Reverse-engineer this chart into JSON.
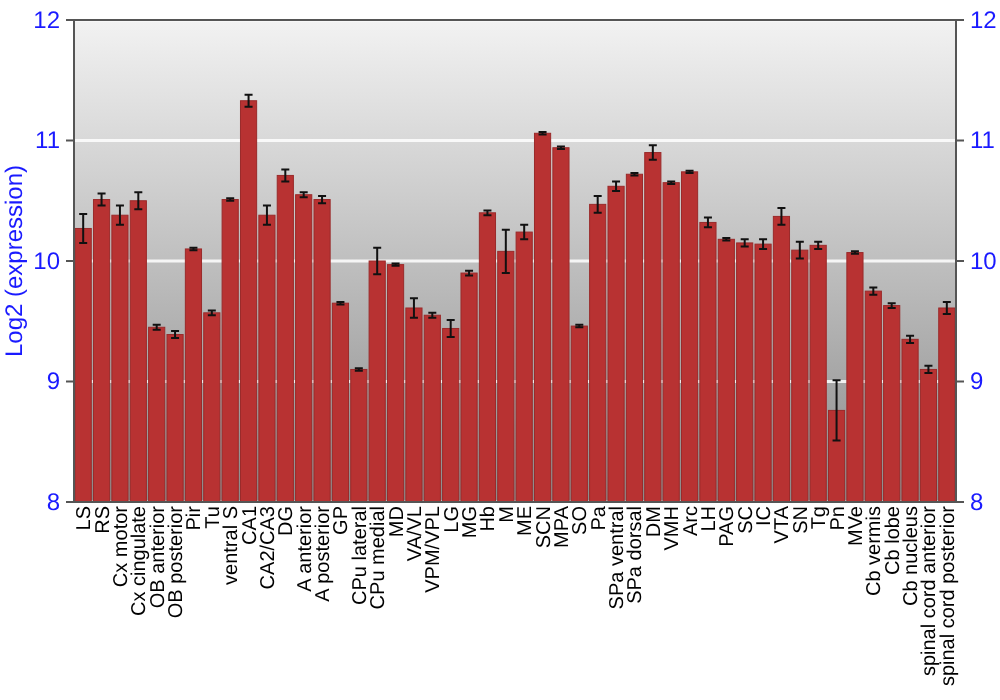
{
  "chart_data": {
    "type": "bar",
    "ylabel": "Log2 (expression)",
    "categories": [
      "LS",
      "RS",
      "Cx motor",
      "Cx cingulate",
      "OB anterior",
      "OB posterior",
      "Pir",
      "Tu",
      "ventral S",
      "CA1",
      "CA2/CA3",
      "DG",
      "A anterior",
      "A posterior",
      "GP",
      "CPu lateral",
      "CPu medial",
      "MD",
      "VA/VL",
      "VPM/VPL",
      "LG",
      "MG",
      "Hb",
      "M",
      "ME",
      "SCN",
      "MPA",
      "SO",
      "Pa",
      "SPa ventral",
      "SPa dorsal",
      "DM",
      "VMH",
      "Arc",
      "LH",
      "PAG",
      "SC",
      "IC",
      "VTA",
      "SN",
      "Tg",
      "Pn",
      "MVe",
      "Cb vermis",
      "Cb lobe",
      "Cb nucleus",
      "spinal cord anterior",
      "spinal cord posterior"
    ],
    "values": [
      10.27,
      10.51,
      10.38,
      10.5,
      9.45,
      9.39,
      10.1,
      9.57,
      10.51,
      11.33,
      10.38,
      10.71,
      10.55,
      10.51,
      9.65,
      9.1,
      10.0,
      9.97,
      9.61,
      9.55,
      9.44,
      9.9,
      10.4,
      10.08,
      10.24,
      11.06,
      10.94,
      9.46,
      10.47,
      10.62,
      10.72,
      10.9,
      10.65,
      10.74,
      10.32,
      10.18,
      10.15,
      10.14,
      10.37,
      10.09,
      10.13,
      8.76,
      10.07,
      9.75,
      9.63,
      9.35,
      9.1,
      9.61
    ],
    "errors": [
      0.12,
      0.05,
      0.08,
      0.07,
      0.02,
      0.03,
      0.01,
      0.02,
      0.01,
      0.05,
      0.08,
      0.05,
      0.02,
      0.03,
      0.01,
      0.01,
      0.11,
      0.01,
      0.08,
      0.02,
      0.07,
      0.02,
      0.02,
      0.18,
      0.06,
      0.01,
      0.01,
      0.01,
      0.07,
      0.04,
      0.01,
      0.06,
      0.01,
      0.01,
      0.04,
      0.01,
      0.03,
      0.04,
      0.07,
      0.07,
      0.03,
      0.25,
      0.01,
      0.03,
      0.02,
      0.03,
      0.03,
      0.05
    ],
    "color": "#b83232",
    "ylim": [
      8,
      12
    ],
    "yticks": [
      8,
      9,
      10,
      11,
      12
    ],
    "y2lim": [
      8,
      12
    ],
    "y2ticks": [
      8,
      9,
      10,
      11,
      12
    ],
    "grid": "y"
  }
}
